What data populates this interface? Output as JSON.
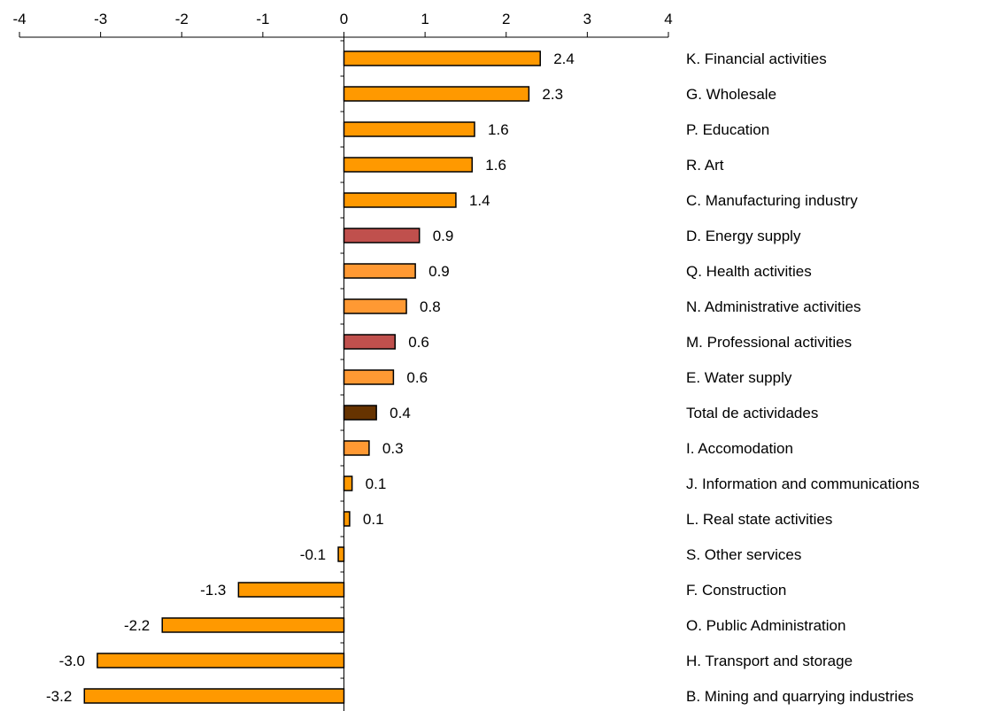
{
  "chart_data": {
    "type": "bar",
    "orientation": "horizontal",
    "xlim": [
      -4,
      4
    ],
    "xticks": [
      "-4",
      "-3",
      "-2",
      "-1",
      "0",
      "1",
      "2",
      "3",
      "4"
    ],
    "axis_position": "top",
    "grid": false,
    "legend": "none",
    "categories": [
      "K. Financial activities",
      "G. Wholesale",
      "P. Education",
      "R. Art",
      "C. Manufacturing industry",
      "D. Energy supply",
      "Q. Health activities",
      "N. Administrative activities",
      "M. Professional activities",
      "E. Water supply",
      "Total de actividades",
      "I. Accomodation",
      "J. Information and communications",
      "L. Real state activities",
      "S. Other services",
      "F. Construction",
      "O. Public Administration",
      "H. Transport and storage",
      "B. Mining and quarrying industries"
    ],
    "values": [
      2.42,
      2.28,
      1.61,
      1.58,
      1.38,
      0.93,
      0.88,
      0.77,
      0.63,
      0.61,
      0.4,
      0.31,
      0.1,
      0.07,
      -0.07,
      -1.3,
      -2.24,
      -3.04,
      -3.2
    ],
    "value_labels": [
      "2.4",
      "2.3",
      "1.6",
      "1.6",
      "1.4",
      "0.9",
      "0.9",
      "0.8",
      "0.6",
      "0.6",
      "0.4",
      "0.3",
      "0.1",
      "0.1",
      "-0.1",
      "-1.3",
      "-2.2",
      "-3.0",
      "-3.2"
    ],
    "colors": [
      "#ff9900",
      "#ff9900",
      "#ff9900",
      "#ff9900",
      "#ff9900",
      "#c0504d",
      "#ff9933",
      "#ff9933",
      "#c0504d",
      "#ff9933",
      "#663300",
      "#ff9933",
      "#ff9900",
      "#ff9900",
      "#ff9900",
      "#ff9900",
      "#ff9900",
      "#ff9900",
      "#ff9900"
    ],
    "bar_outline": "#000000"
  }
}
